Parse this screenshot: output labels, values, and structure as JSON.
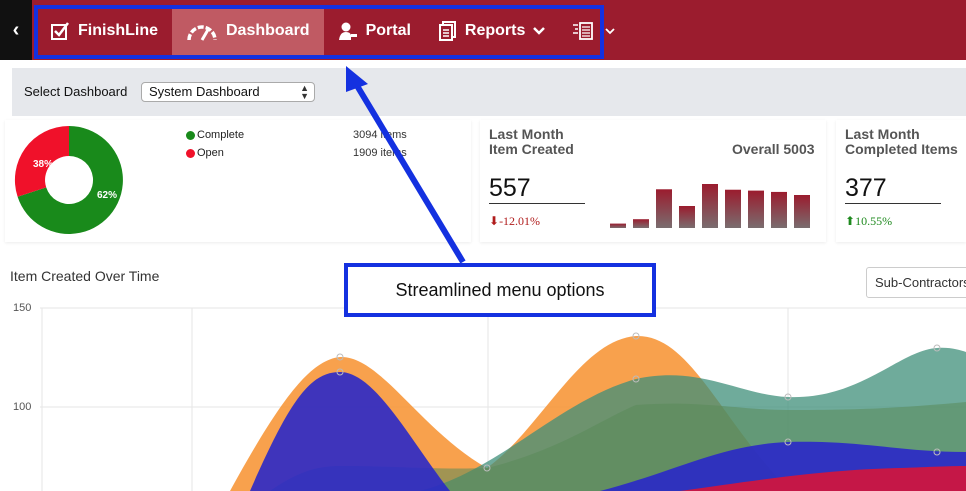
{
  "nav": {
    "back_glyph": "‹",
    "items": [
      {
        "label": "FinishLine",
        "icon": "checkbox-icon"
      },
      {
        "label": "Dashboard",
        "icon": "speedometer-icon"
      },
      {
        "label": "Portal",
        "icon": "user-key-icon"
      },
      {
        "label": "Reports",
        "icon": "report-icon"
      },
      {
        "label": "",
        "icon": "list-doc-icon"
      }
    ]
  },
  "select_dashboard": {
    "label": "Select Dashboard",
    "value": "System Dashboard"
  },
  "status_card": {
    "legend": [
      {
        "label": "Complete",
        "count": "3094 items",
        "color": "#198a1b"
      },
      {
        "label": "Open",
        "count": "1909 items",
        "color": "#f0112a"
      }
    ],
    "donut_labels": {
      "complete": "62%",
      "open": "38%"
    }
  },
  "created_card": {
    "title_line1": "Last Month",
    "title_line2": "Item Created",
    "value": "557",
    "delta": "-12.01%",
    "overall": "Overall 5003",
    "bars": [
      0.1,
      0.2,
      0.88,
      0.5,
      1.0,
      0.87,
      0.85,
      0.82,
      0.75
    ]
  },
  "completed_card": {
    "title_line1": "Last Month",
    "title_line2": "Completed Items",
    "value": "377",
    "delta": "10.55%"
  },
  "timeline": {
    "title": "Item Created Over Time",
    "filter_value": "Sub-Contractors",
    "y_ticks": [
      "150",
      "100"
    ]
  },
  "annotation": {
    "text": "Streamlined menu options",
    "color": "#1431e0"
  },
  "chart_data": {
    "type": "area",
    "title": "Item Created Over Time",
    "y_ticks": [
      150,
      100
    ],
    "series_colors": [
      "#f7902e",
      "#2a28c8",
      "#3f8f7a",
      "#d6143a"
    ]
  }
}
